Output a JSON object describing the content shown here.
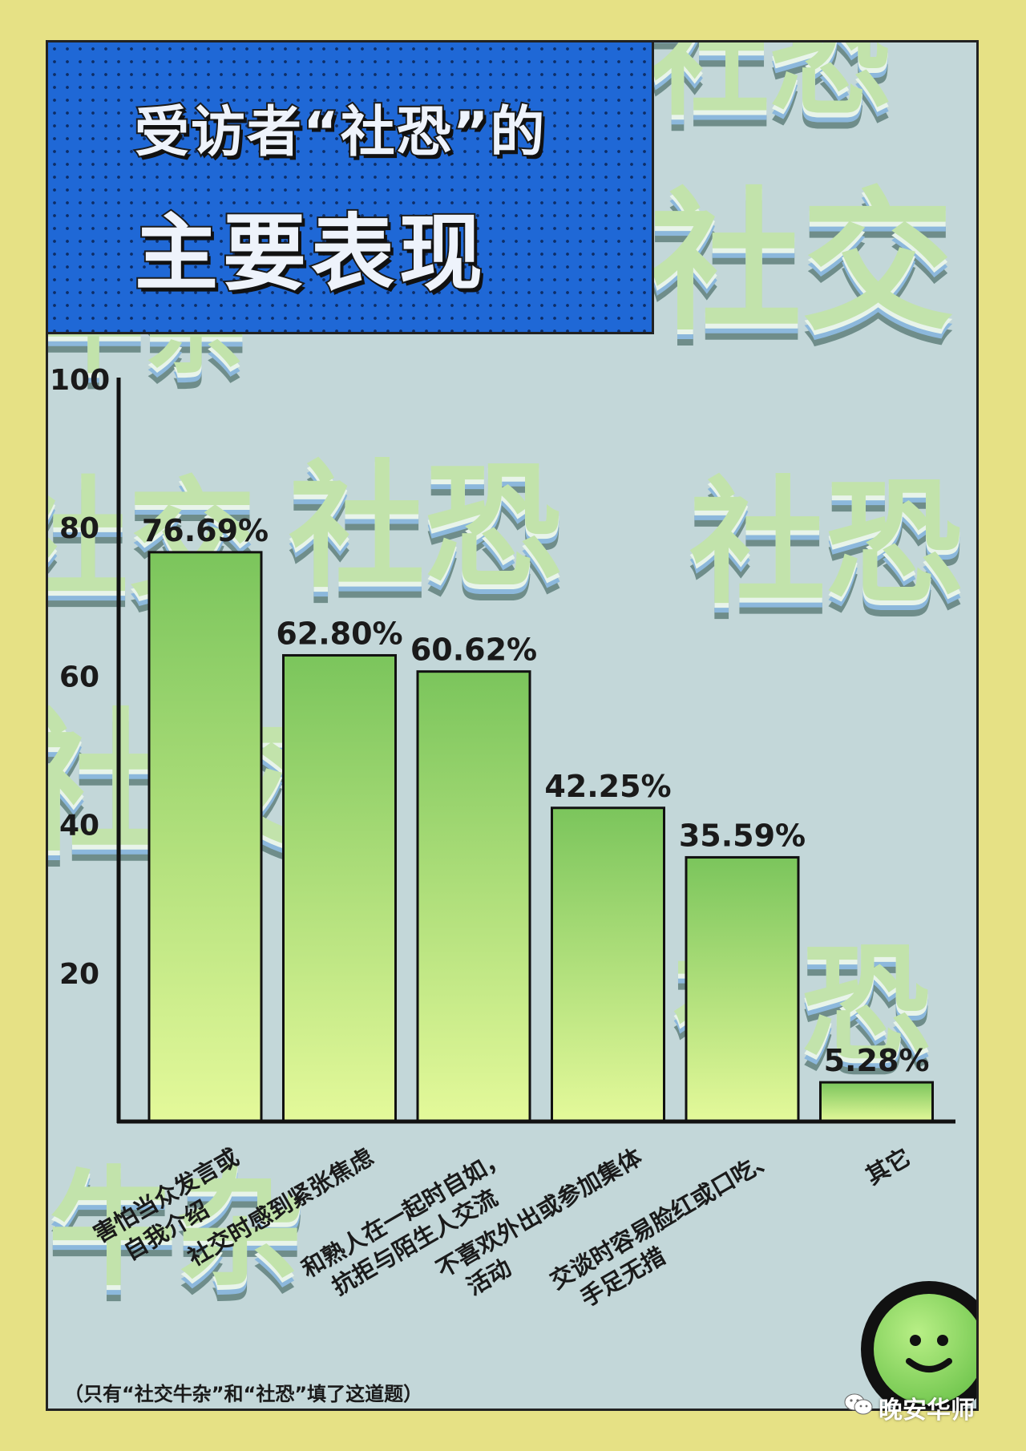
{
  "title": {
    "line1": "受访者“社恐”的",
    "line2": "主要表现"
  },
  "footnote": "（只有“社交牛杂”和“社恐”填了这道题）",
  "watermark": "晚安华师",
  "background_words": [
    "社恐",
    "社交",
    "牛杂",
    "社恐",
    "社交",
    "社恐",
    "社交",
    "社恐",
    "牛杂"
  ],
  "colors": {
    "bar_top": "#7bc55c",
    "bar_bottom": "#e4f99a",
    "panel_blue": "#1f68d6",
    "page_bg": "#e6e185"
  },
  "chart_data": {
    "type": "bar",
    "categories": [
      "害怕当众发言或\n自我介绍",
      "社交时感到紧张焦虑",
      "和熟人在一起时自如，\n抗拒与陌生人交流",
      "不喜欢外出或参加集体\n活动",
      "交谈时容易脸红或口吃、\n手足无措",
      "其它"
    ],
    "values": [
      76.69,
      62.8,
      60.62,
      42.25,
      35.59,
      5.28
    ],
    "value_labels": [
      "76.69%",
      "62.80%",
      "60.62%",
      "42.25%",
      "35.59%",
      "5.28%"
    ],
    "yticks": [
      "20",
      "40",
      "60",
      "80",
      "100"
    ],
    "ylim": [
      0,
      100
    ],
    "grid": false,
    "legend": "none"
  }
}
